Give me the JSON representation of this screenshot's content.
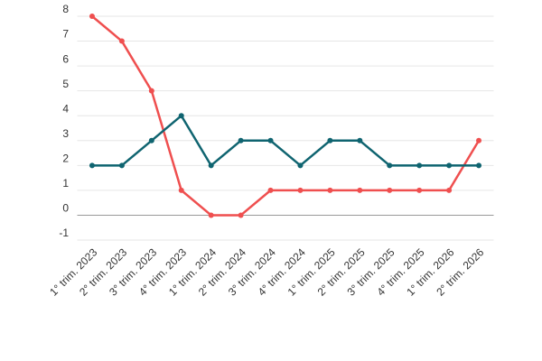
{
  "chart_data": {
    "type": "line",
    "categories": [
      "1° trim. 2023",
      "2° trim. 2023",
      "3° trim. 2023",
      "4° trim. 2023",
      "1° trim. 2024",
      "2° trim. 2024",
      "3° trim. 2024",
      "4° trim. 2024",
      "1° trim. 2025",
      "2° trim. 2025",
      "3° trim. 2025",
      "4° trim. 2025",
      "1° trim. 2026",
      "2° trim. 2026"
    ],
    "series": [
      {
        "color": "#ef4f4f",
        "values": [
          8,
          7,
          5,
          1,
          0,
          0,
          1,
          1,
          1,
          1,
          1,
          1,
          1,
          3
        ]
      },
      {
        "color": "#0f6470",
        "values": [
          2,
          2,
          3,
          4,
          2,
          3,
          3,
          2,
          3,
          3,
          2,
          2,
          2,
          2
        ]
      }
    ],
    "ylim": [
      -1,
      8
    ],
    "yticks": [
      -1,
      0,
      1,
      2,
      3,
      4,
      5,
      6,
      7,
      8
    ],
    "grid": true
  }
}
